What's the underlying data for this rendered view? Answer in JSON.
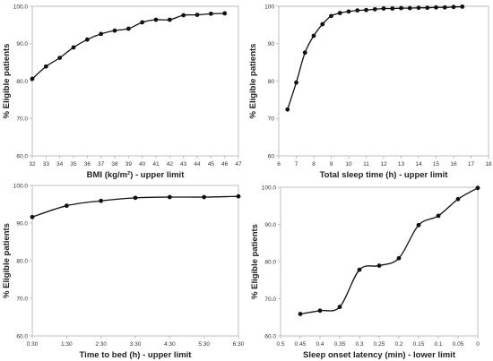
{
  "chart_data": [
    {
      "type": "line",
      "xlabel": "BMI (kg/m²) - upper limit",
      "ylabel": "% Eligible patients",
      "xlim": [
        32,
        47
      ],
      "ylim": [
        60,
        100
      ],
      "x_ticks": [
        "32",
        "33",
        "34",
        "35",
        "36",
        "37",
        "38",
        "39",
        "40",
        "41",
        "42",
        "43",
        "44",
        "45",
        "46",
        "47"
      ],
      "y_ticks": [
        "60.0",
        "70.0",
        "80.0",
        "90.0",
        "100.0"
      ],
      "grid": false,
      "series": [
        {
          "x": [
            32,
            33,
            34,
            35,
            36,
            37,
            38,
            39,
            40,
            41,
            42,
            43,
            44,
            45,
            46
          ],
          "y": [
            80.6,
            83.9,
            86.2,
            89.0,
            91.1,
            92.6,
            93.5,
            94.0,
            95.7,
            96.4,
            96.4,
            97.6,
            97.7,
            98.0,
            98.1
          ]
        }
      ]
    },
    {
      "type": "line",
      "xlabel": "Total sleep time (h) - upper limit",
      "ylabel": "% Eligible patients",
      "xlim": [
        6,
        18
      ],
      "ylim": [
        60,
        100
      ],
      "x_ticks": [
        "6",
        "7",
        "8",
        "9",
        "10",
        "11",
        "12",
        "13",
        "14",
        "15",
        "16",
        "17",
        "18"
      ],
      "y_ticks": [
        "60",
        "70",
        "80",
        "90",
        "100"
      ],
      "grid": false,
      "series": [
        {
          "x": [
            6.5,
            7.0,
            7.5,
            8.0,
            8.5,
            9.0,
            9.5,
            10.0,
            10.5,
            11.0,
            11.5,
            12.0,
            12.5,
            13.0,
            13.5,
            14.0,
            14.5,
            15.0,
            15.5,
            16.0,
            16.5
          ],
          "y": [
            72.4,
            79.6,
            87.6,
            92.1,
            95.2,
            97.4,
            98.2,
            98.6,
            98.9,
            99.0,
            99.2,
            99.4,
            99.4,
            99.5,
            99.5,
            99.6,
            99.6,
            99.7,
            99.7,
            99.8,
            99.9
          ]
        }
      ]
    },
    {
      "type": "line",
      "xlabel": "Time to bed (h) - upper limit",
      "ylabel": "% Eligible patients",
      "xlim": [
        0,
        6
      ],
      "ylim": [
        60,
        100
      ],
      "x_ticks": [
        "0:30",
        "1:30",
        "2:30",
        "3:30",
        "4:30",
        "5:30",
        "6:30"
      ],
      "y_ticks": [
        "60.0",
        "70.0",
        "80.0",
        "90.0",
        "100.0"
      ],
      "grid": false,
      "series": [
        {
          "x": [
            0,
            1,
            2,
            3,
            4,
            5,
            6
          ],
          "y": [
            91.6,
            94.6,
            95.9,
            96.7,
            96.9,
            96.9,
            97.1
          ]
        }
      ]
    },
    {
      "type": "line",
      "xlabel": "Sleep onset latency (min) - lower limit",
      "ylabel": "% Eligible patients",
      "xlim": [
        0.5,
        0
      ],
      "ylim": [
        60,
        100
      ],
      "x_ticks": [
        "0.5",
        "0.45",
        "0.4",
        "0.35",
        "0.3",
        "0.25",
        "0.2",
        "0.15",
        "0.1",
        "0.05",
        "0"
      ],
      "y_ticks": [
        "60.0",
        "70.0",
        "80.0",
        "90.0",
        "100.0"
      ],
      "grid": false,
      "series": [
        {
          "x": [
            0.45,
            0.4,
            0.35,
            0.3,
            0.25,
            0.2,
            0.15,
            0.1,
            0.05,
            0
          ],
          "y": [
            65.9,
            66.8,
            67.8,
            77.8,
            78.9,
            80.9,
            89.8,
            92.3,
            96.8,
            99.8
          ]
        }
      ]
    }
  ]
}
